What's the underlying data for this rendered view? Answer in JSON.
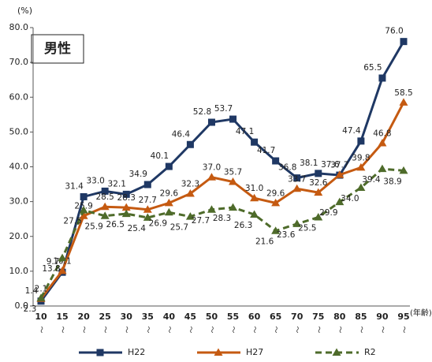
{
  "chart_data": {
    "type": "line",
    "title": "男性",
    "y_unit": "(%)",
    "x_label": "(年齢)",
    "x_suffix": "〜",
    "categories": [
      "10",
      "15",
      "20",
      "25",
      "30",
      "35",
      "40",
      "45",
      "50",
      "55",
      "60",
      "65",
      "70",
      "75",
      "80",
      "85",
      "90",
      "95"
    ],
    "series": [
      {
        "name": "H22",
        "color": "#1f3864",
        "label_color": "#2f5f80",
        "marker": "square",
        "dash": false,
        "values": [
          1.4,
          9.7,
          31.4,
          33.0,
          32.1,
          34.9,
          40.1,
          46.4,
          52.8,
          53.7,
          47.1,
          41.7,
          36.8,
          38.1,
          37.6,
          47.4,
          65.5,
          76.0
        ],
        "value_labels": [
          "1.4",
          "9.7",
          "31.4",
          "33.0",
          "32.1",
          "34.9",
          "40.1",
          "46.4",
          "52.8",
          "53.7",
          "47.1",
          "41.7",
          "36.8",
          "38.1",
          "37.6",
          "47.4",
          "65.5",
          "76.0"
        ]
      },
      {
        "name": "H27",
        "color": "#c55a11",
        "label_color": "#b5540f",
        "marker": "triangle",
        "dash": false,
        "values": [
          2.1,
          10.1,
          25.9,
          28.5,
          28.3,
          27.7,
          29.6,
          32.3,
          37.0,
          35.7,
          31.0,
          29.6,
          33.7,
          32.6,
          37.7,
          39.8,
          46.8,
          58.5
        ],
        "value_labels": [
          "2.1",
          "10.1",
          "25.9",
          "28.5",
          "28.3",
          "27.7",
          "29.6",
          "32.3",
          "37.0",
          "35.7",
          "31.0",
          "29.6",
          "33.7",
          "32.6",
          "37.7",
          "39.8",
          "46.8",
          "58.5"
        ]
      },
      {
        "name": "R2",
        "color": "#4e6b2a",
        "label_color": "#4e6b2a",
        "marker": "triangle",
        "dash": true,
        "values": [
          2.3,
          13.8,
          27.5,
          25.9,
          26.5,
          25.4,
          26.9,
          25.7,
          27.7,
          28.3,
          26.3,
          21.6,
          23.6,
          25.5,
          29.9,
          34.0,
          39.4,
          38.9
        ],
        "value_labels": [
          "2.3",
          "13.8",
          "27.5",
          "25.9",
          "26.5",
          "25.4",
          "26.9",
          "25.7",
          "27.7",
          "28.3",
          "26.3",
          "21.6",
          "23.6",
          "25.5",
          "29.9",
          "34.0",
          "39.4",
          "38.9"
        ]
      }
    ],
    "ylim": [
      0,
      80
    ],
    "yticks": [
      {
        "value": 0,
        "label": "0.0"
      },
      {
        "value": 10,
        "label": "10.0"
      },
      {
        "value": 20,
        "label": "20.0"
      },
      {
        "value": 30,
        "label": "30.0"
      },
      {
        "value": 40,
        "label": "40.0"
      },
      {
        "value": 50,
        "label": "50.0"
      },
      {
        "value": 60,
        "label": "60.0"
      },
      {
        "value": 70,
        "label": "70.0"
      },
      {
        "value": 80,
        "label": "80.0"
      }
    ],
    "grid": false
  }
}
